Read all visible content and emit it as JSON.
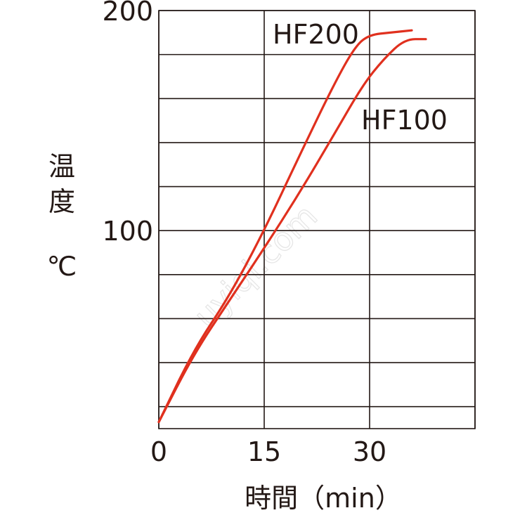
{
  "watermark": "uyiqi.com",
  "chart_data": {
    "type": "line",
    "y_title_chars": [
      "温",
      "度"
    ],
    "y_unit": "℃",
    "xlabel": "時間（min）",
    "x_ticks": [
      "0",
      "15",
      "30"
    ],
    "x_tick_values": [
      0,
      15,
      30
    ],
    "y_ticks": [
      "200",
      "100"
    ],
    "y_tick_values": [
      200,
      100
    ],
    "xlim": [
      0,
      45
    ],
    "ylim": [
      10,
      200
    ],
    "grid": true,
    "series": [
      {
        "name": "HF200",
        "color": "#e0301e",
        "x": [
          0,
          5,
          10,
          15,
          20,
          25,
          28,
          30,
          33,
          36
        ],
        "y": [
          13,
          46,
          70,
          100,
          134,
          167,
          184,
          189,
          190,
          191
        ]
      },
      {
        "name": "HF100",
        "color": "#e0301e",
        "x": [
          0,
          5,
          10,
          15,
          20,
          25,
          29,
          32,
          35,
          38
        ],
        "y": [
          13,
          44,
          68,
          92,
          117,
          144,
          166,
          178,
          187,
          187
        ]
      }
    ]
  }
}
